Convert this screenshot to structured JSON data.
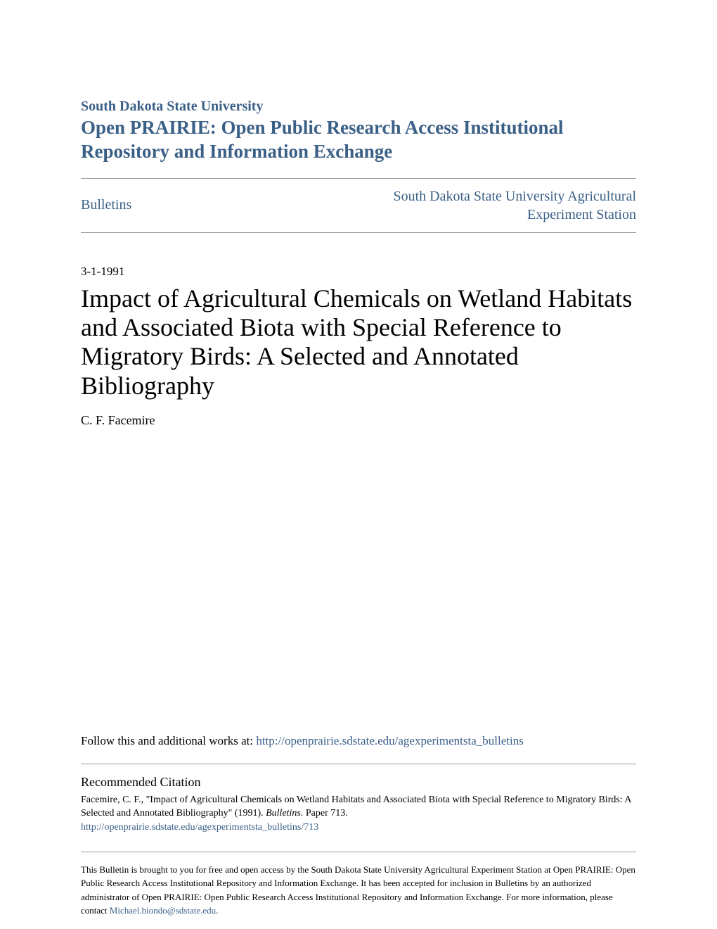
{
  "header": {
    "university": "South Dakota State University",
    "repository": "Open PRAIRIE: Open Public Research Access Institutional Repository and Information Exchange"
  },
  "nav": {
    "left": "Bulletins",
    "right": "South Dakota State University Agricultural Experiment Station"
  },
  "date": "3-1-1991",
  "title": "Impact of Agricultural Chemicals on Wetland Habitats and Associated Biota with Special Reference to Migratory Birds: A Selected and Annotated Bibliography",
  "author": "C. F. Facemire",
  "follow": {
    "prefix": "Follow this and additional works at: ",
    "link": "http://openprairie.sdstate.edu/agexperimentsta_bulletins"
  },
  "citation": {
    "heading": "Recommended Citation",
    "text_part1": "Facemire, C. F., \"Impact of Agricultural Chemicals on Wetland Habitats and Associated Biota with Special Reference to Migratory Birds: A Selected and Annotated Bibliography\" (1991). ",
    "text_italic": "Bulletins.",
    "text_part2": " Paper 713.",
    "link": "http://openprairie.sdstate.edu/agexperimentsta_bulletins/713"
  },
  "footer": {
    "text_part1": "This Bulletin is brought to you for free and open access by the South Dakota State University Agricultural Experiment Station at Open PRAIRIE: Open Public Research Access Institutional Repository and Information Exchange. It has been accepted for inclusion in Bulletins by an authorized administrator of Open PRAIRIE: Open Public Research Access Institutional Repository and Information Exchange. For more information, please contact ",
    "email": "Michael.biondo@sdstate.edu",
    "text_part2": "."
  },
  "colors": {
    "link_color": "#3b6087",
    "text_color": "#000000",
    "border_color": "#999999",
    "background": "#ffffff"
  }
}
